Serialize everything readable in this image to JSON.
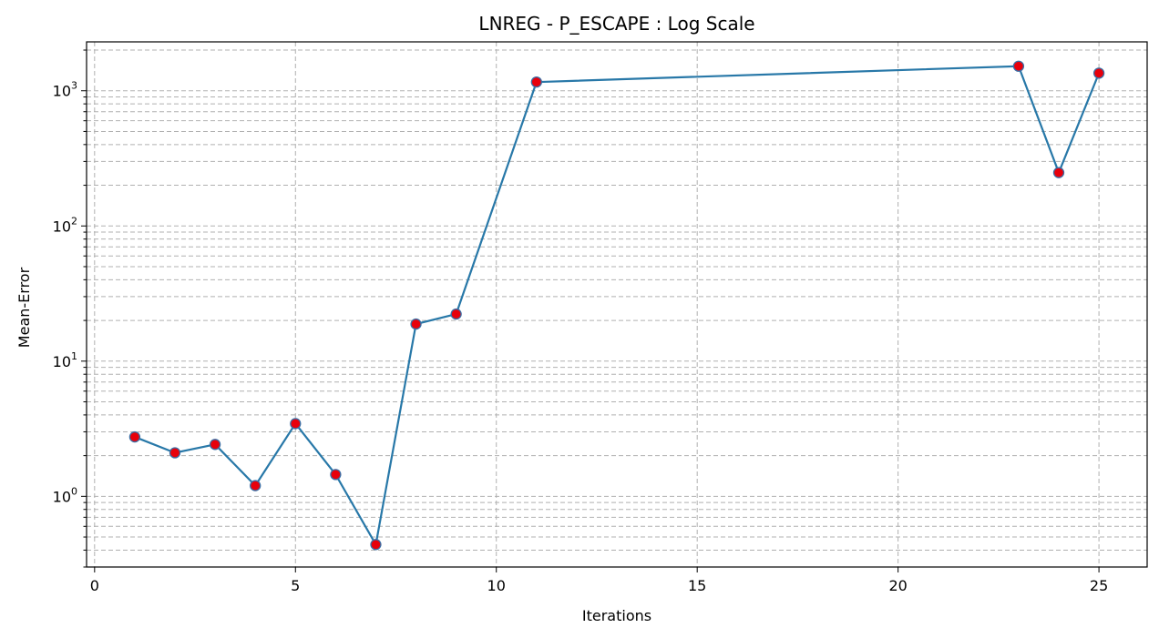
{
  "chart_data": {
    "type": "line",
    "title": "LNREG - P_ESCAPE : Log Scale",
    "xlabel": "Iterations",
    "ylabel": "Mean-Error",
    "yscale": "log",
    "xlim": [
      -0.2,
      26.2
    ],
    "ylim": [
      0.3,
      2300
    ],
    "xticks": [
      0,
      5,
      10,
      15,
      20,
      25
    ],
    "yticks": [
      {
        "base": "10",
        "exp": "0",
        "value": 1
      },
      {
        "base": "10",
        "exp": "1",
        "value": 10
      },
      {
        "base": "10",
        "exp": "2",
        "value": 100
      },
      {
        "base": "10",
        "exp": "3",
        "value": 1000
      }
    ],
    "grid": true,
    "legend": "none",
    "series": [
      {
        "x": [
          1,
          2,
          3,
          4,
          5,
          6,
          7,
          8,
          9,
          11,
          23,
          24,
          25
        ],
        "y": [
          2.75,
          2.1,
          2.42,
          1.2,
          3.45,
          1.45,
          0.44,
          18.8,
          22.3,
          1160,
          1520,
          248,
          1350
        ],
        "line_color": "#2878a8",
        "marker_color": "#e8000b",
        "marker_edge": "#3a6ea5"
      }
    ]
  }
}
